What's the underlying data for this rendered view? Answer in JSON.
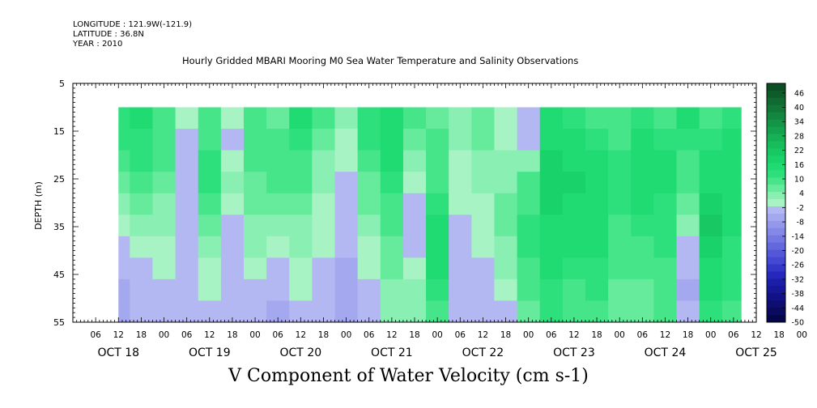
{
  "header": {
    "longitude": "LONGITUDE : 121.9W(-121.9)",
    "latitude": "LATITUDE : 36.8N",
    "year": "YEAR : 2010"
  },
  "chart_data": {
    "type": "heatmap",
    "title": "Hourly Gridded MBARI Mooring M0 Sea Water Temperature and Salinity Observations",
    "xlabel": "V Component of Water Velocity (cm s-1)",
    "ylabel": "DEPTH (m)",
    "ylim": [
      5,
      55
    ],
    "y_inverted": true,
    "y_ticks": [
      5,
      15,
      25,
      35,
      45,
      55
    ],
    "x_hour_tick_labels": [
      "06",
      "12",
      "18",
      "00",
      "06",
      "12",
      "18",
      "00",
      "06",
      "12",
      "18",
      "00",
      "06",
      "12",
      "18",
      "00",
      "06",
      "12",
      "18",
      "00",
      "06",
      "12",
      "18",
      "00",
      "06",
      "12",
      "18",
      "00",
      "06",
      "12",
      "18",
      "00",
      "06",
      "12",
      "18",
      "00",
      "06"
    ],
    "x_day_labels": [
      "OCT 18",
      "OCT 19",
      "OCT 20",
      "OCT 21",
      "OCT 22",
      "OCT 23",
      "OCT 24",
      "OCT 25"
    ],
    "data_start": "OCT 18 12",
    "data_end": "OCT 25 08",
    "data_depth_range": [
      10,
      55
    ],
    "colorbar": {
      "labels": [
        "46",
        "40",
        "34",
        "28",
        "22",
        "16",
        "10",
        "4",
        "-2",
        "-8",
        "-14",
        "-20",
        "-26",
        "-32",
        "-38",
        "-44",
        "-50"
      ],
      "levels": [
        50,
        46,
        43,
        40,
        37,
        34,
        31,
        28,
        25,
        22,
        19,
        16,
        13,
        10,
        7,
        4,
        1,
        -2,
        -5,
        -8,
        -11,
        -14,
        -17,
        -20,
        -23,
        -26,
        -29,
        -32,
        -35,
        -38,
        -41,
        -44,
        -47,
        -50
      ],
      "colors": [
        "#0d4d24",
        "#0f5c2b",
        "#116a32",
        "#127839",
        "#138640",
        "#149447",
        "#15a24e",
        "#16b055",
        "#17bd5c",
        "#18c963",
        "#1ad26a",
        "#20da72",
        "#2ee07c",
        "#46e58a",
        "#66ea9c",
        "#8aefb2",
        "#a8f3c4",
        "#b4b8f2",
        "#a4a8ee",
        "#9498ea",
        "#8488e6",
        "#7478e2",
        "#6468dd",
        "#5458d8",
        "#4448d2",
        "#3438c8",
        "#2628bb",
        "#1c1eaa",
        "#161898",
        "#121286",
        "#0e0e72",
        "#0a0a5e",
        "#06064a"
      ]
    },
    "profiles": [
      {
        "x": "OCT 18 12",
        "v": [
          12,
          11,
          9,
          6,
          2,
          0,
          -2,
          -4,
          -5,
          -6
        ]
      },
      {
        "x": "OCT 18 18",
        "v": [
          14,
          13,
          12,
          10,
          6,
          3,
          0,
          -2,
          -3,
          -4
        ]
      },
      {
        "x": "OCT 19 00",
        "v": [
          10,
          9,
          8,
          6,
          4,
          2,
          0,
          -1,
          -2,
          -3
        ]
      },
      {
        "x": "OCT 19 06",
        "v": [
          -1,
          -3,
          -4,
          -3,
          -2,
          -2,
          -3,
          -3,
          -4,
          -4
        ]
      },
      {
        "x": "OCT 19 12",
        "v": [
          8,
          10,
          12,
          11,
          8,
          5,
          2,
          0,
          -1,
          -2
        ]
      },
      {
        "x": "OCT 19 18",
        "v": [
          0,
          -2,
          0,
          3,
          1,
          -2,
          -3,
          -4,
          -3,
          -2
        ]
      },
      {
        "x": "OCT 20 00",
        "v": [
          10,
          9,
          8,
          7,
          6,
          4,
          2,
          0,
          -2,
          -3
        ]
      },
      {
        "x": "OCT 20 06",
        "v": [
          6,
          8,
          10,
          8,
          5,
          2,
          -1,
          -3,
          -4,
          -5
        ]
      },
      {
        "x": "OCT 20 12",
        "v": [
          14,
          12,
          10,
          8,
          6,
          4,
          2,
          0,
          -1,
          -2
        ]
      },
      {
        "x": "OCT 20 18",
        "v": [
          8,
          6,
          4,
          2,
          1,
          0,
          -1,
          -2,
          -2,
          -3
        ]
      },
      {
        "x": "OCT 21 00",
        "v": [
          2,
          0,
          -1,
          -2,
          -3,
          -4,
          -4,
          -5,
          -5,
          -5
        ]
      },
      {
        "x": "OCT 21 06",
        "v": [
          12,
          11,
          9,
          7,
          5,
          3,
          1,
          -1,
          -2,
          -3
        ]
      },
      {
        "x": "OCT 21 12",
        "v": [
          16,
          15,
          14,
          12,
          10,
          8,
          6,
          5,
          4,
          3
        ]
      },
      {
        "x": "OCT 21 18",
        "v": [
          8,
          6,
          3,
          0,
          -2,
          -3,
          -2,
          0,
          2,
          4
        ]
      },
      {
        "x": "OCT 22 00",
        "v": [
          6,
          8,
          10,
          10,
          12,
          14,
          16,
          14,
          12,
          10
        ]
      },
      {
        "x": "OCT 22 06",
        "v": [
          4,
          3,
          1,
          0,
          -1,
          -2,
          -2,
          -3,
          -3,
          -3
        ]
      },
      {
        "x": "OCT 22 12",
        "v": [
          6,
          5,
          4,
          2,
          0,
          -1,
          -1,
          -2,
          -2,
          -2
        ]
      },
      {
        "x": "OCT 22 18",
        "v": [
          -1,
          0,
          2,
          4,
          5,
          6,
          4,
          2,
          0,
          -2
        ]
      },
      {
        "x": "OCT 23 00",
        "v": [
          -2,
          -3,
          4,
          8,
          10,
          12,
          12,
          10,
          8,
          6
        ]
      },
      {
        "x": "OCT 23 06",
        "v": [
          14,
          16,
          18,
          18,
          17,
          16,
          15,
          14,
          12,
          11
        ]
      },
      {
        "x": "OCT 23 12",
        "v": [
          12,
          14,
          16,
          17,
          16,
          15,
          14,
          12,
          10,
          8
        ]
      },
      {
        "x": "OCT 23 18",
        "v": [
          10,
          12,
          14,
          16,
          16,
          15,
          14,
          13,
          12,
          10
        ]
      },
      {
        "x": "OCT 24 00",
        "v": [
          8,
          10,
          12,
          12,
          11,
          10,
          9,
          8,
          7,
          6
        ]
      },
      {
        "x": "OCT 24 06",
        "v": [
          12,
          14,
          16,
          16,
          14,
          12,
          10,
          8,
          7,
          6
        ]
      },
      {
        "x": "OCT 24 12",
        "v": [
          10,
          12,
          14,
          14,
          13,
          12,
          11,
          10,
          9,
          8
        ]
      },
      {
        "x": "OCT 24 18",
        "v": [
          14,
          12,
          10,
          8,
          6,
          2,
          -2,
          -4,
          -5,
          -3
        ]
      },
      {
        "x": "OCT 25 00",
        "v": [
          10,
          12,
          14,
          16,
          18,
          20,
          18,
          16,
          14,
          12
        ]
      },
      {
        "x": "OCT 25 06",
        "v": [
          12,
          14,
          16,
          16,
          15,
          14,
          13,
          12,
          11,
          10
        ]
      }
    ]
  }
}
